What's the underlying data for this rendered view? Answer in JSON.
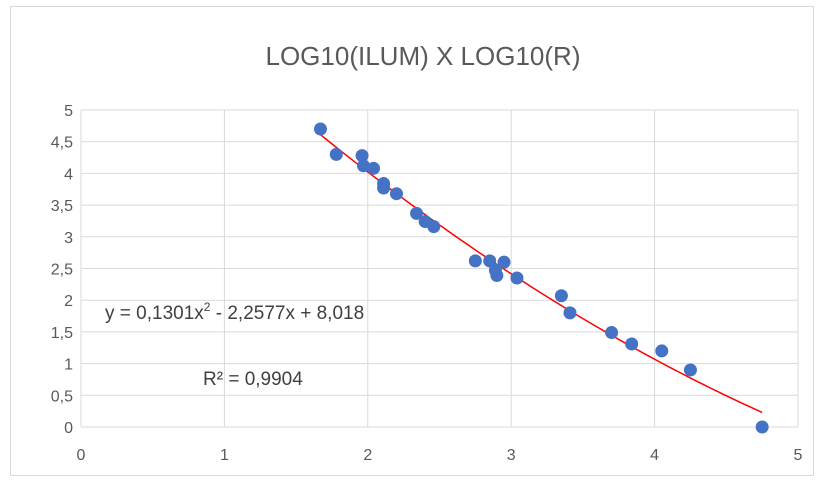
{
  "chart_data": {
    "type": "scatter",
    "title": "LOG10(ILUM) X LOG10(R)",
    "xlabel": "",
    "ylabel": "",
    "xlim": [
      0,
      5
    ],
    "ylim": [
      0,
      5
    ],
    "x_ticks": [
      "0",
      "1",
      "2",
      "3",
      "4",
      "5"
    ],
    "y_ticks": [
      "0",
      "0,5",
      "1",
      "1,5",
      "2",
      "2,5",
      "3",
      "3,5",
      "4",
      "4,5",
      "5"
    ],
    "grid": true,
    "legend": "none",
    "point_color": "#4472c4",
    "trendline_color": "#ff0000",
    "series": [
      {
        "x": [
          1.67,
          1.78,
          1.96,
          1.97,
          2.04,
          2.11,
          2.11,
          2.2,
          2.34,
          2.4,
          2.46,
          2.75,
          2.85,
          2.89,
          2.9,
          2.95,
          3.04,
          3.35,
          3.41,
          3.7,
          3.84,
          4.05,
          4.25,
          4.75
        ],
        "y": [
          4.7,
          4.3,
          4.28,
          4.12,
          4.08,
          3.84,
          3.77,
          3.68,
          3.37,
          3.24,
          3.16,
          2.62,
          2.62,
          2.47,
          2.39,
          2.6,
          2.35,
          2.07,
          1.8,
          1.49,
          1.31,
          1.2,
          0.9,
          0.0
        ]
      }
    ],
    "trendline": {
      "type": "polynomial",
      "coefficients": [
        0.1301,
        -2.2577,
        8.018
      ],
      "x_range": [
        1.67,
        4.75
      ]
    },
    "annotations": {
      "equation_prefix": "y = 0,1301x",
      "equation_sup": "2",
      "equation_suffix": " - 2,2577x + 8,018",
      "r2": "R² = 0,9904"
    }
  }
}
